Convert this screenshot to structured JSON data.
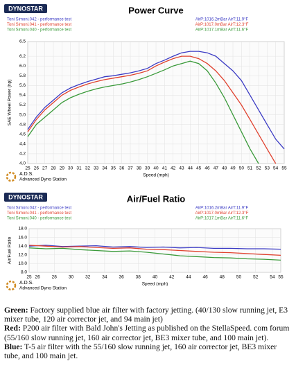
{
  "chart_data": [
    {
      "type": "line",
      "logo": "DYNOSTAR",
      "title": "Power Curve",
      "x_label": "Speed (mph)",
      "y_label": "SAE Wheel Power (hp)",
      "footer": [
        "A.D.S.",
        "Advanced Dyno Station"
      ],
      "x": [
        25,
        26,
        27,
        28,
        29,
        30,
        31,
        32,
        33,
        34,
        35,
        36,
        37,
        38,
        39,
        40,
        41,
        42,
        43,
        44,
        45,
        46,
        47,
        48,
        49,
        50,
        51,
        52,
        53,
        54,
        55
      ],
      "xlim": [
        25,
        55
      ],
      "xticks": [
        25,
        26,
        27,
        28,
        29,
        30,
        31,
        32,
        33,
        34,
        35,
        36,
        37,
        38,
        39,
        40,
        41,
        42,
        43,
        44,
        45,
        46,
        47,
        48,
        49,
        50,
        51,
        52,
        53,
        54,
        55
      ],
      "ylim": [
        4,
        6.5
      ],
      "yticks": [
        {
          "value": 4,
          "label": "4.0"
        },
        4.2,
        4.4,
        4.6,
        4.8,
        {
          "value": 5,
          "label": "5.0"
        },
        5.2,
        5.4,
        5.6,
        5.8,
        {
          "value": 6,
          "label": "6.0"
        },
        6.2,
        6.5
      ],
      "grid": true,
      "series": [
        {
          "name": "Toni Simoni.042 - performance test",
          "conditions": "AirP:1016.2mBar AirT:11.9°F",
          "color": "#3b3bc4",
          "values": [
            4.7,
            4.95,
            5.15,
            5.3,
            5.45,
            5.55,
            5.62,
            5.68,
            5.73,
            5.78,
            5.8,
            5.83,
            5.86,
            5.9,
            5.95,
            6.05,
            6.12,
            6.2,
            6.27,
            6.3,
            6.3,
            6.27,
            6.2,
            6.05,
            5.9,
            5.7,
            5.4,
            5.1,
            4.8,
            4.5,
            4.3
          ]
        },
        {
          "name": "Toni Simoni.041 - performance test",
          "conditions": "AirP:1017.0mBar AirT:12.3°F",
          "color": "#e0412e",
          "values": [
            4.65,
            4.9,
            5.1,
            5.25,
            5.4,
            5.5,
            5.57,
            5.63,
            5.68,
            5.72,
            5.75,
            5.78,
            5.81,
            5.85,
            5.9,
            6.0,
            6.08,
            6.15,
            6.2,
            6.2,
            6.15,
            6.05,
            5.9,
            5.7,
            5.45,
            5.2,
            4.9,
            4.6,
            4.3,
            4.0,
            null
          ]
        },
        {
          "name": "Toni Simoni.040 - performance test",
          "conditions": "AirP:1017.1mBar AirT:11.6°F",
          "color": "#3a9a3a",
          "values": [
            4.55,
            4.8,
            4.95,
            5.1,
            5.25,
            5.35,
            5.42,
            5.48,
            5.53,
            5.57,
            5.6,
            5.63,
            5.67,
            5.72,
            5.78,
            5.85,
            5.92,
            6.0,
            6.05,
            6.1,
            6.05,
            5.9,
            5.65,
            5.35,
            5.0,
            4.65,
            4.3,
            4.0,
            null,
            null,
            null
          ]
        }
      ]
    },
    {
      "type": "line",
      "logo": "DYNOSTAR",
      "title": "Air/Fuel Ratio",
      "x_label": "Speed (mph)",
      "y_label": "Air/Fuel Ratio",
      "footer": [
        "A.D.S.",
        "Advanced Dyno Station"
      ],
      "x": [
        25,
        27,
        29,
        31,
        33,
        35,
        37,
        39,
        41,
        43,
        45,
        47,
        49,
        51,
        53,
        55
      ],
      "xlim": [
        25,
        55
      ],
      "xticks": [
        25,
        26,
        28,
        30,
        32,
        34,
        36,
        38,
        40,
        42,
        44,
        46,
        48,
        50,
        52,
        54,
        55
      ],
      "ylim": [
        8,
        18
      ],
      "yticks": [
        {
          "value": 8,
          "label": "8.0"
        },
        {
          "value": 10,
          "label": "10.0"
        },
        {
          "value": 12,
          "label": "12.0"
        },
        {
          "value": 14,
          "label": "14.0"
        },
        {
          "value": 16,
          "label": "16.0"
        },
        {
          "value": 18,
          "label": "18.0"
        }
      ],
      "grid": true,
      "series": [
        {
          "name": "Toni Simoni.042 - performance test",
          "conditions": "AirP:1016.2mBar AirT:11.9°F",
          "color": "#3b3bc4",
          "values": [
            14.0,
            14.2,
            13.9,
            14.0,
            14.1,
            13.8,
            13.9,
            13.7,
            13.8,
            13.6,
            13.7,
            13.5,
            13.5,
            13.4,
            13.4,
            13.3
          ]
        },
        {
          "name": "Toni Simoni.041 - performance test",
          "conditions": "AirP:1017.0mBar AirT:12.3°F",
          "color": "#e0412e",
          "values": [
            14.2,
            14.0,
            13.8,
            13.9,
            13.7,
            13.5,
            13.6,
            13.3,
            13.2,
            13.0,
            12.8,
            12.6,
            12.5,
            12.3,
            12.1,
            11.9
          ]
        },
        {
          "name": "Toni Simoni.040 - performance test",
          "conditions": "AirP:1017.1mBar AirT:11.6°F",
          "color": "#3a9a3a",
          "values": [
            13.6,
            13.4,
            13.5,
            13.2,
            13.0,
            12.8,
            12.9,
            12.6,
            12.2,
            11.8,
            11.6,
            11.4,
            11.3,
            11.1,
            11.0,
            10.8
          ]
        }
      ]
    }
  ],
  "notes": [
    {
      "label": "Green:",
      "text": "Factory supplied blue air filter with factory jetting. (40/130 slow running jet, E3 mixer tube, 120 air corrector jet, and 94 main jet)"
    },
    {
      "label": "Red:",
      "text": "P200 air filter with Bald John's Jetting as published on the StellaSpeed. com forum (55/160 slow running jet, 160 air corrector jet, BE3 mixer tube, and 100 main jet)."
    },
    {
      "label": "Blue:",
      "text": "T-5 air filter with the 55/160 slow running jet, 160 air corrector jet, BE3 mixer tube, and 100 main jet."
    }
  ]
}
